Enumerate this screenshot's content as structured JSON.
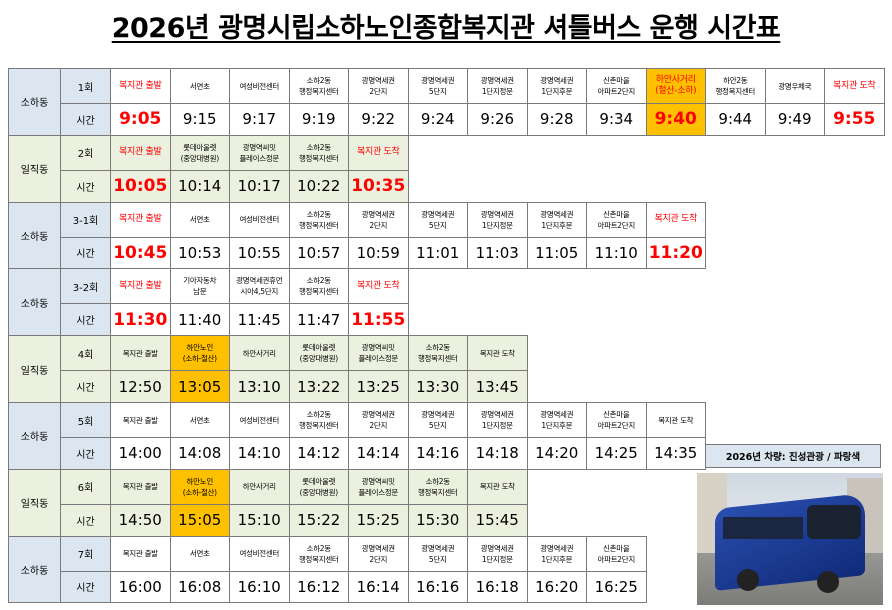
{
  "title": "2026년 광명시립소하노인종합복지관 셔틀버스 운행 시간표",
  "vehicle_note": "2026년 차량: 진성관광 / 파랑색",
  "highlight_color": "#ffc000",
  "routes": [
    {
      "area": "소하동",
      "round": "1회",
      "time_label": "시간",
      "accent": true,
      "highlight": 9,
      "stops": [
        "복지관 출발",
        "서면초",
        "여성비전센터",
        "소하2동\n행정복지센터",
        "광명역세권\n2단지",
        "광명역세권\n5단지",
        "광명역세권\n1단지정문",
        "광명역세권\n1단지후문",
        "신촌마을\n아파트2단지",
        "하안사거리\n(철산-소하)",
        "하안2동\n행정복지센터",
        "광명우체국",
        "복지관 도착"
      ],
      "times": [
        "9:05",
        "9:15",
        "9:17",
        "9:19",
        "9:22",
        "9:24",
        "9:26",
        "9:28",
        "9:34",
        "9:40",
        "9:44",
        "9:49",
        "9:55"
      ]
    },
    {
      "area": "일직동",
      "round": "2회",
      "time_label": "시간",
      "accent": true,
      "stops": [
        "복지관 출발",
        "롯데아울렛\n(중앙대병원)",
        "광명역씨밋\n플레이스정문",
        "소하2동\n행정복지센터",
        "복지관 도착"
      ],
      "times": [
        "10:05",
        "10:14",
        "10:17",
        "10:22",
        "10:35"
      ]
    },
    {
      "area": "소하동",
      "round": "3-1회",
      "time_label": "시간",
      "accent": true,
      "stops": [
        "복지관 출발",
        "서면초",
        "여성비전센터",
        "소하2동\n행정복지센터",
        "광명역세권\n2단지",
        "광명역세권\n5단지",
        "광명역세권\n1단지정문",
        "광명역세권\n1단지후문",
        "신촌마을\n아파트2단지",
        "복지관 도착"
      ],
      "times": [
        "10:45",
        "10:53",
        "10:55",
        "10:57",
        "10:59",
        "11:01",
        "11:03",
        "11:05",
        "11:10",
        "11:20"
      ]
    },
    {
      "area": "소하동",
      "round": "3-2회",
      "time_label": "시간",
      "accent": true,
      "stops": [
        "복지관 출발",
        "기아자동차\n남문",
        "광명역세권휴먼\n시아4,5단지",
        "소하2동\n행정복지센터",
        "복지관 도착"
      ],
      "times": [
        "11:30",
        "11:40",
        "11:45",
        "11:47",
        "11:55"
      ]
    },
    {
      "area": "일직동",
      "round": "4회",
      "time_label": "시간",
      "accent": false,
      "highlight": 1,
      "stops": [
        "복지관 출발",
        "하안노인\n(소하-철산)",
        "하안사거리",
        "롯데아울렛\n(중앙대병원)",
        "광명역씨밋\n플레이스정문",
        "소하2동\n행정복지센터",
        "복지관 도착"
      ],
      "times": [
        "12:50",
        "13:05",
        "13:10",
        "13:22",
        "13:25",
        "13:30",
        "13:45"
      ]
    },
    {
      "area": "소하동",
      "round": "5회",
      "time_label": "시간",
      "accent": false,
      "stops": [
        "복지관 출발",
        "서면초",
        "여성비전센터",
        "소하2동\n행정복지센터",
        "광명역세권\n2단지",
        "광명역세권\n5단지",
        "광명역세권\n1단지정문",
        "광명역세권\n1단지후문",
        "신촌마을\n아파트2단지",
        "복지관 도착"
      ],
      "times": [
        "14:00",
        "14:08",
        "14:10",
        "14:12",
        "14:14",
        "14:16",
        "14:18",
        "14:20",
        "14:25",
        "14:35"
      ]
    },
    {
      "area": "일직동",
      "round": "6회",
      "time_label": "시간",
      "accent": false,
      "highlight": 1,
      "stops": [
        "복지관 출발",
        "하안노인\n(소하-철산)",
        "하안사거리",
        "롯데아울렛\n(중앙대병원)",
        "광명역씨밋\n플레이스정문",
        "소하2동\n행정복지센터",
        "복지관 도착"
      ],
      "times": [
        "14:50",
        "15:05",
        "15:10",
        "15:22",
        "15:25",
        "15:30",
        "15:45"
      ]
    },
    {
      "area": "소하동",
      "round": "7회",
      "time_label": "시간",
      "accent": false,
      "stops": [
        "복지관 출발",
        "서면초",
        "여성비전센터",
        "소하2동\n행정복지센터",
        "광명역세권\n2단지",
        "광명역세권\n5단지",
        "광명역세권\n1단지정문",
        "광명역세권\n1단지후문",
        "신촌마을\n아파트2단지"
      ],
      "times": [
        "16:00",
        "16:08",
        "16:10",
        "16:12",
        "16:14",
        "16:16",
        "16:18",
        "16:20",
        "16:25"
      ]
    }
  ]
}
